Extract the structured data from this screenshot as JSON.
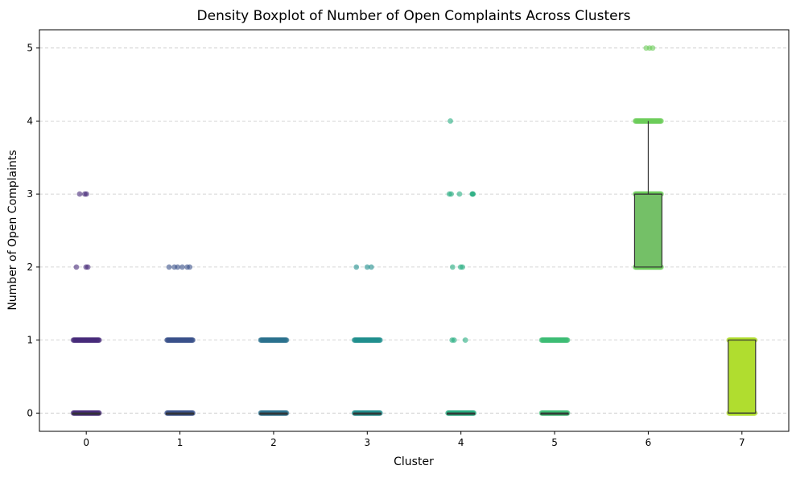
{
  "chart_data": {
    "type": "box",
    "title": "Density Boxplot of Number of Open Complaints Across Clusters",
    "xlabel": "Cluster",
    "ylabel": "Number of Open Complaints",
    "categories": [
      "0",
      "1",
      "2",
      "3",
      "4",
      "5",
      "6",
      "7"
    ],
    "y_ticks": [
      0,
      1,
      2,
      3,
      4,
      5
    ],
    "ylim": [
      -0.25,
      5.25
    ],
    "grid": "y-dashed",
    "legend": "none",
    "boxes": [
      {
        "cluster": "0",
        "q1": 0,
        "median": 0,
        "q3": 0,
        "whisker_low": 0,
        "whisker_high": 0
      },
      {
        "cluster": "1",
        "q1": 0,
        "median": 0,
        "q3": 0,
        "whisker_low": 0,
        "whisker_high": 0
      },
      {
        "cluster": "2",
        "q1": 0,
        "median": 0,
        "q3": 0,
        "whisker_low": 0,
        "whisker_high": 0
      },
      {
        "cluster": "3",
        "q1": 0,
        "median": 0,
        "q3": 0,
        "whisker_low": 0,
        "whisker_high": 0
      },
      {
        "cluster": "4",
        "q1": 0,
        "median": 0,
        "q3": 0,
        "whisker_low": 0,
        "whisker_high": 0
      },
      {
        "cluster": "5",
        "q1": 0,
        "median": 0,
        "q3": 0,
        "whisker_low": 0,
        "whisker_high": 0
      },
      {
        "cluster": "6",
        "q1": 2,
        "median": 3,
        "q3": 3,
        "whisker_low": 2,
        "whisker_high": 4
      },
      {
        "cluster": "7",
        "q1": 0,
        "median": 0,
        "q3": 1,
        "whisker_low": 0,
        "whisker_high": 1
      }
    ],
    "strip_points": [
      {
        "cluster": "0",
        "levels": [
          {
            "y": 0,
            "n": "many"
          },
          {
            "y": 1,
            "n": "many"
          },
          {
            "y": 2,
            "n": "few"
          },
          {
            "y": 3,
            "n": "few"
          }
        ]
      },
      {
        "cluster": "1",
        "levels": [
          {
            "y": 0,
            "n": "many"
          },
          {
            "y": 1,
            "n": "many"
          },
          {
            "y": 2,
            "n": "some"
          }
        ]
      },
      {
        "cluster": "2",
        "levels": [
          {
            "y": 0,
            "n": "many"
          },
          {
            "y": 1,
            "n": "many"
          }
        ]
      },
      {
        "cluster": "3",
        "levels": [
          {
            "y": 0,
            "n": "many"
          },
          {
            "y": 1,
            "n": "many"
          },
          {
            "y": 2,
            "n": "few"
          }
        ]
      },
      {
        "cluster": "4",
        "levels": [
          {
            "y": 0,
            "n": "many"
          },
          {
            "y": 1,
            "n": "few"
          },
          {
            "y": 2,
            "n": "few"
          },
          {
            "y": 3,
            "n": "some"
          },
          {
            "y": 4,
            "n": "one"
          }
        ]
      },
      {
        "cluster": "5",
        "levels": [
          {
            "y": 0,
            "n": "many"
          },
          {
            "y": 1,
            "n": "many"
          }
        ]
      },
      {
        "cluster": "6",
        "levels": [
          {
            "y": 2,
            "n": "many"
          },
          {
            "y": 3,
            "n": "many"
          },
          {
            "y": 4,
            "n": "many"
          },
          {
            "y": 5,
            "n": "few"
          }
        ]
      },
      {
        "cluster": "7",
        "levels": [
          {
            "y": 0,
            "n": "many"
          },
          {
            "y": 1,
            "n": "many"
          }
        ]
      }
    ],
    "colors": [
      "#472c7a",
      "#3b518b",
      "#2c718e",
      "#21908d",
      "#27ad81",
      "#3dbc74",
      "#6ccd5a",
      "#b0dd2f"
    ],
    "box_fill_cluster6": "#74c067"
  }
}
